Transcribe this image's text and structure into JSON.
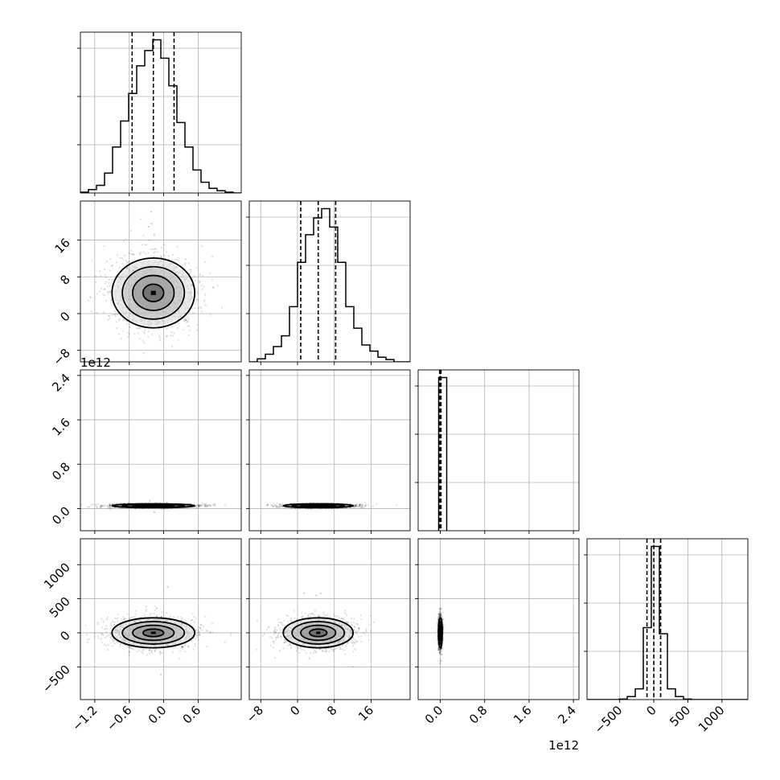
{
  "chart_data": {
    "type": "corner",
    "histogram_bins": 20,
    "contour_levels": 4,
    "grid": true,
    "colors": {
      "line": "#000000",
      "grid": "#b0b0b0",
      "scatter": "#000000"
    },
    "parameters": [
      {
        "range": [
          -1.45,
          1.35
        ],
        "ticks": [
          -1.2,
          -0.6,
          0.0,
          0.6
        ],
        "tick_labels": [
          "−1.2",
          "−0.6",
          "0.0",
          "0.6"
        ],
        "axis_offset": "",
        "quantiles": [
          -0.55,
          -0.18,
          0.18
        ],
        "hist_bins": [
          -1.45,
          -1.31,
          -1.17,
          -1.03,
          -0.89,
          -0.75,
          -0.61,
          -0.47,
          -0.33,
          -0.19,
          -0.05,
          0.09,
          0.23,
          0.37,
          0.51,
          0.65,
          0.79,
          0.93,
          1.07,
          1.21,
          1.35
        ],
        "hist_counts": [
          0.005,
          0.022,
          0.05,
          0.13,
          0.3,
          0.47,
          0.65,
          0.83,
          0.93,
          1.0,
          0.88,
          0.7,
          0.46,
          0.3,
          0.15,
          0.07,
          0.03,
          0.015,
          0.005,
          0.0
        ]
      },
      {
        "range": [
          -10.5,
          24.5
        ],
        "ticks": [
          -8,
          0,
          8,
          16
        ],
        "tick_labels": [
          "−8",
          "0",
          "8",
          "16"
        ],
        "axis_offset": "",
        "quantiles": [
          0.7,
          4.5,
          8.3
        ],
        "hist_bins": [
          -10.5,
          -8.75,
          -7.0,
          -5.25,
          -3.5,
          -1.75,
          0.0,
          1.75,
          3.5,
          5.25,
          7.0,
          8.75,
          10.5,
          12.25,
          14.0,
          15.75,
          17.5,
          19.25,
          21.0,
          22.75,
          24.5
        ],
        "hist_counts": [
          0.0,
          0.02,
          0.05,
          0.1,
          0.17,
          0.36,
          0.65,
          0.83,
          0.94,
          1.0,
          0.88,
          0.65,
          0.36,
          0.22,
          0.11,
          0.07,
          0.03,
          0.015,
          0.0,
          0.0
        ]
      },
      {
        "range": [
          -0.4,
          2.5
        ],
        "ticks": [
          0.0,
          0.8,
          1.6,
          2.4
        ],
        "tick_labels": [
          "0.0",
          "0.8",
          "1.6",
          "2.4"
        ],
        "axis_offset": "1e12",
        "quantiles": [
          -0.012,
          0.0,
          0.012
        ],
        "hist_bins": [
          -0.03,
          0.115
        ],
        "hist_counts": [
          1.0
        ]
      },
      {
        "range": [
          -980,
          1380
        ],
        "ticks": [
          -500,
          0,
          500,
          1000
        ],
        "tick_labels": [
          "−500",
          "0",
          "500",
          "1000"
        ],
        "axis_offset": "",
        "quantiles": [
          -100,
          0,
          100
        ],
        "hist_bins": [
          -980,
          -862,
          -744,
          -626,
          -508,
          -390,
          -272,
          -154,
          -36,
          82,
          200,
          318,
          436,
          554,
          672,
          790,
          908,
          1026,
          1144,
          1262,
          1380
        ],
        "hist_counts": [
          0.0,
          0.0,
          0.0,
          0.0,
          0.003,
          0.02,
          0.07,
          0.47,
          1.0,
          0.43,
          0.07,
          0.02,
          0.003,
          0.0,
          0.0,
          0.0,
          0.0,
          0.0,
          0.0,
          0.0
        ]
      }
    ],
    "pairs": [
      {
        "x": 0,
        "y": 1,
        "mean": [
          -0.18,
          4.5
        ],
        "sd": [
          0.36,
          3.8
        ],
        "contour_sigmas": [
          0.5,
          1.0,
          1.5,
          2.0
        ]
      },
      {
        "x": 0,
        "y": 2,
        "mean": [
          -0.18,
          0.05
        ],
        "sd": [
          0.36,
          0.012
        ],
        "contour_sigmas": [
          0.5,
          1.0,
          1.5,
          2.0
        ]
      },
      {
        "x": 1,
        "y": 2,
        "mean": [
          4.5,
          0.05
        ],
        "sd": [
          3.8,
          0.012
        ],
        "contour_sigmas": [
          0.5,
          1.0,
          1.5,
          2.0
        ]
      },
      {
        "x": 0,
        "y": 3,
        "mean": [
          -0.18,
          0
        ],
        "sd": [
          0.36,
          110
        ],
        "contour_sigmas": [
          0.5,
          1.0,
          1.5,
          2.0
        ]
      },
      {
        "x": 1,
        "y": 3,
        "mean": [
          4.5,
          0
        ],
        "sd": [
          3.8,
          110
        ],
        "contour_sigmas": [
          0.5,
          1.0,
          1.5,
          2.0
        ]
      },
      {
        "x": 2,
        "y": 3,
        "mean": [
          0.0,
          0
        ],
        "sd": [
          0.008,
          110
        ],
        "contour_sigmas": [
          0.5,
          1.0,
          1.5,
          2.0
        ]
      }
    ]
  }
}
